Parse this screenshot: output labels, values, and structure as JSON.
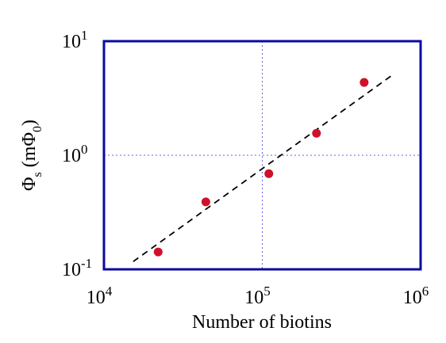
{
  "chart_data": {
    "type": "scatter",
    "x": [
      22000,
      44000,
      110000,
      220000,
      440000
    ],
    "values": [
      0.142,
      0.39,
      0.69,
      1.56,
      4.35
    ],
    "color": "#d0102a",
    "fit": {
      "x": [
        15300,
        650000
      ],
      "values": [
        0.117,
        4.95
      ],
      "color": "#000000"
    },
    "xlabel": "Number of biotins",
    "ylabel": [
      "Φ",
      "s",
      " (mΦ",
      "0",
      ")"
    ],
    "xlim": [
      10000,
      1000000
    ],
    "ylim": [
      0.1,
      10
    ],
    "xticks": [
      {
        "value": 10000,
        "label": "10",
        "sup": "4"
      },
      {
        "value": 100000,
        "label": "10",
        "sup": "5"
      },
      {
        "value": 1000000,
        "label": "10",
        "sup": "6"
      }
    ],
    "yticks": [
      {
        "value": 0.1,
        "label": "10",
        "sup": "-1"
      },
      {
        "value": 1,
        "label": "10",
        "sup": "0"
      },
      {
        "value": 10,
        "label": "10",
        "sup": "1"
      }
    ],
    "log_x": true,
    "log_y": true,
    "grid": true,
    "grid_color": "#6666dd",
    "frame_color": "#0a0aa0"
  }
}
